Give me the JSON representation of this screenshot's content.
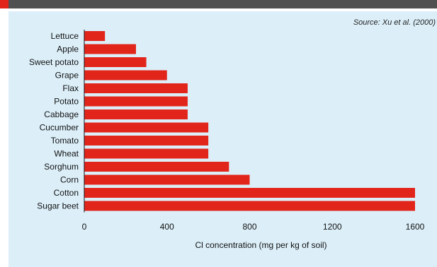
{
  "source_text": "Source: Xu et al. (2000)",
  "colors": {
    "bar": "#e2251b",
    "panel": "#dceff9",
    "header": "#505050"
  },
  "chart_data": {
    "type": "bar",
    "orientation": "horizontal",
    "categories": [
      "Lettuce",
      "Apple",
      "Sweet potato",
      "Grape",
      "Flax",
      "Potato",
      "Cabbage",
      "Cucumber",
      "Tomato",
      "Wheat",
      "Sorghum",
      "Corn",
      "Cotton",
      "Sugar beet"
    ],
    "values": [
      100,
      250,
      300,
      400,
      500,
      500,
      500,
      600,
      600,
      600,
      700,
      800,
      1600,
      1600
    ],
    "xlabel": "Cl concentration (mg per kg of soil)",
    "ylabel": "",
    "xlim": [
      0,
      1600
    ],
    "ticks": [
      0,
      400,
      800,
      1200,
      1600
    ],
    "tick_labels": [
      "0",
      "400",
      "800",
      "1200",
      "1600"
    ],
    "grid": false,
    "legend": "none"
  }
}
